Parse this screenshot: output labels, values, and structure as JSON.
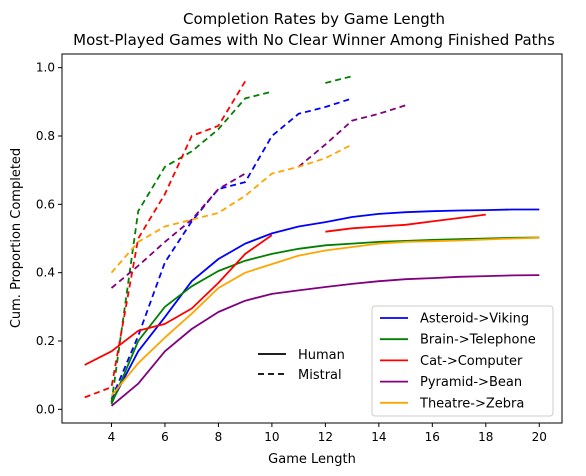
{
  "chart_data": {
    "type": "line",
    "title": "Completion Rates by Game Length",
    "subtitle": "Most-Played Games with No Clear Winner Among Finished Paths",
    "xlabel": "Game Length",
    "ylabel": "Cum. Proportion Completed",
    "xlim": [
      2.15,
      20.85
    ],
    "ylim": [
      -0.04,
      1.04
    ],
    "xticks": [
      4,
      6,
      8,
      10,
      12,
      14,
      16,
      18,
      20
    ],
    "yticks": [
      0.0,
      0.2,
      0.4,
      0.6,
      0.8,
      1.0
    ],
    "grid": false,
    "legend_placement": "lower-right",
    "series": [
      {
        "name": "Asteroid->Viking",
        "color": "#0000ff",
        "human": {
          "x": [
            4,
            5,
            6,
            7,
            8,
            9,
            10,
            11,
            12,
            13,
            14,
            15,
            16,
            17,
            18,
            19,
            20
          ],
          "y": [
            0.02,
            0.17,
            0.27,
            0.375,
            0.44,
            0.485,
            0.515,
            0.535,
            0.548,
            0.563,
            0.572,
            0.577,
            0.58,
            0.582,
            0.583,
            0.585,
            0.585
          ]
        },
        "mistral": {
          "x": [
            4,
            5,
            6,
            7,
            8,
            9,
            10,
            11,
            12,
            13
          ],
          "y": [
            0.03,
            0.215,
            0.43,
            0.55,
            0.645,
            0.665,
            0.8,
            0.865,
            0.885,
            0.91
          ]
        }
      },
      {
        "name": "Brain->Telephone",
        "color": "#008000",
        "human": {
          "x": [
            4,
            5,
            6,
            7,
            8,
            9,
            10,
            11,
            12,
            13,
            14,
            15,
            16,
            17,
            18,
            19,
            20
          ],
          "y": [
            0.015,
            0.2,
            0.3,
            0.36,
            0.405,
            0.435,
            0.455,
            0.47,
            0.48,
            0.485,
            0.49,
            0.493,
            0.496,
            0.498,
            0.5,
            0.502,
            0.503
          ]
        },
        "mistral": {
          "x": [
            4,
            5,
            6,
            7,
            8,
            9,
            10,
            11,
            12,
            13
          ],
          "y": [
            0.02,
            0.58,
            0.71,
            0.755,
            0.82,
            0.91,
            0.93,
            null,
            0.955,
            0.975
          ]
        }
      },
      {
        "name": "Cat->Computer",
        "color": "#ff0000",
        "human": {
          "x": [
            3,
            4,
            5,
            6,
            7,
            8,
            9,
            10,
            11,
            12,
            13,
            14,
            15,
            16,
            17,
            18
          ],
          "y": [
            0.13,
            0.17,
            0.23,
            0.25,
            0.295,
            0.37,
            0.455,
            0.51,
            null,
            0.52,
            0.53,
            0.535,
            0.54,
            0.55,
            0.56,
            0.57
          ]
        },
        "mistral": {
          "x": [
            3,
            4,
            5,
            6,
            7,
            8,
            9
          ],
          "y": [
            0.035,
            0.065,
            0.5,
            0.63,
            0.8,
            0.83,
            0.96
          ]
        }
      },
      {
        "name": "Pyramid->Bean",
        "color": "#800080",
        "human": {
          "x": [
            4,
            5,
            6,
            7,
            8,
            9,
            10,
            11,
            12,
            13,
            14,
            15,
            16,
            17,
            18,
            19,
            20
          ],
          "y": [
            0.01,
            0.075,
            0.17,
            0.235,
            0.285,
            0.318,
            0.338,
            0.348,
            0.358,
            0.367,
            0.375,
            0.381,
            0.384,
            0.388,
            0.39,
            0.392,
            0.393
          ]
        },
        "mistral": {
          "x": [
            4,
            5,
            6,
            7,
            8,
            9,
            10,
            11,
            12,
            13,
            14,
            15
          ],
          "y": [
            0.355,
            0.42,
            0.49,
            0.555,
            0.645,
            0.69,
            null,
            0.71,
            0.775,
            0.845,
            0.865,
            0.89
          ]
        }
      },
      {
        "name": "Theatre->Zebra",
        "color": "#ffa500",
        "human": {
          "x": [
            4,
            5,
            6,
            7,
            8,
            9,
            10,
            11,
            12,
            13,
            14,
            15,
            16,
            17,
            18,
            19,
            20
          ],
          "y": [
            0.04,
            0.135,
            0.21,
            0.28,
            0.355,
            0.4,
            0.425,
            0.45,
            0.465,
            0.475,
            0.485,
            0.49,
            0.492,
            0.494,
            0.497,
            0.5,
            0.502
          ]
        },
        "mistral": {
          "x": [
            4,
            5,
            6,
            7,
            8,
            9,
            10,
            11,
            12,
            13
          ],
          "y": [
            0.4,
            0.49,
            0.535,
            0.555,
            0.575,
            0.625,
            0.69,
            0.71,
            0.735,
            0.775
          ]
        }
      }
    ],
    "style_legend": [
      {
        "label": "Human",
        "dash": "solid"
      },
      {
        "label": "Mistral",
        "dash": "dashed"
      }
    ]
  }
}
